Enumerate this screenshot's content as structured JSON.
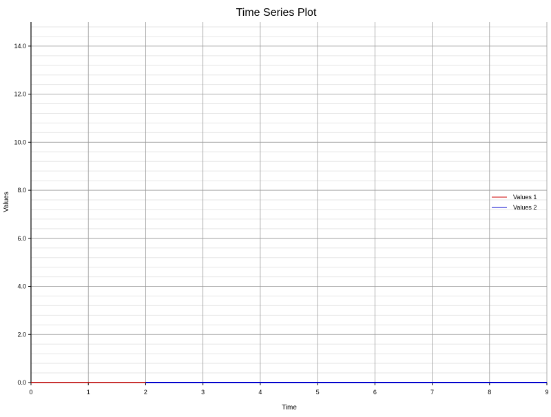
{
  "chart_data": {
    "type": "line",
    "title": "Time Series Plot",
    "xlabel": "Time",
    "ylabel": "Values",
    "xlim": [
      0,
      9
    ],
    "ylim": [
      0,
      15
    ],
    "x_ticks": [
      "0",
      "1",
      "2",
      "3",
      "4",
      "5",
      "6",
      "7",
      "8",
      "9"
    ],
    "y_ticks": [
      "0.0",
      "2.0",
      "4.0",
      "6.0",
      "8.0",
      "10.0",
      "12.0",
      "14.0"
    ],
    "major_grid": true,
    "minor_grid": true,
    "legend_position": "right",
    "series": [
      {
        "name": "Values 1",
        "color": "#cc0000",
        "x": [
          0,
          1,
          2,
          3,
          4,
          5,
          6,
          7,
          8,
          9
        ],
        "values": [
          0,
          0,
          0,
          0,
          0,
          0,
          0,
          0,
          0,
          0
        ]
      },
      {
        "name": "Values 2",
        "color": "#0000cc",
        "x": [
          2,
          3,
          4,
          5,
          6,
          7,
          8,
          9
        ],
        "values": [
          0,
          0,
          0,
          0,
          0,
          0,
          0,
          0
        ]
      }
    ]
  }
}
